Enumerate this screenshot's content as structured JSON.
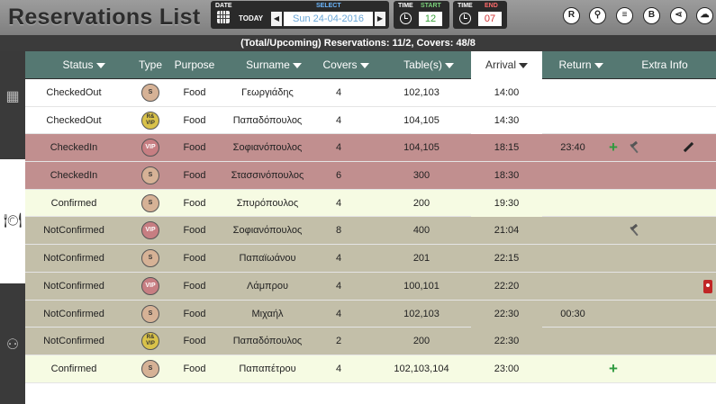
{
  "app": {
    "title": "Reservations List"
  },
  "date_picker": {
    "date_label": "DATE",
    "select_label": "SELECT",
    "today_label": "TODAY",
    "prev_label": "◀",
    "next_label": "▶",
    "date_value": "Sun 24-04-2016"
  },
  "time_start": {
    "time_label": "TIME",
    "start_label": "START",
    "value": "12"
  },
  "time_end": {
    "time_label": "TIME",
    "end_label": "END",
    "value": "07"
  },
  "toolbar": {
    "icons": [
      {
        "name": "reservation-icon",
        "glyph": "R"
      },
      {
        "name": "search-icon",
        "glyph": "⚲"
      },
      {
        "name": "list-icon",
        "glyph": "≡"
      },
      {
        "name": "b-icon",
        "glyph": "B"
      },
      {
        "name": "share-icon",
        "glyph": "⋖"
      },
      {
        "name": "cloud-download-icon",
        "glyph": "☁"
      }
    ]
  },
  "summary": {
    "text": "(Total/Upcoming) Reservations: 11/2, Covers: 48/8"
  },
  "sidebar": {
    "icons": [
      {
        "name": "grid-icon",
        "glyph": "▦"
      },
      {
        "name": "cutlery-icon",
        "glyph": "🍽"
      },
      {
        "name": "people-icon",
        "glyph": "⚇"
      }
    ]
  },
  "columns": {
    "status": "Status",
    "type": "Type",
    "purpose": "Purpose",
    "surname": "Surname",
    "covers": "Covers",
    "tables": "Table(s)",
    "arrival": "Arrival",
    "return": "Return",
    "extra": "Extra Info"
  },
  "type_labels": {
    "s": "S",
    "vip": "VIP",
    "rvip_top": "R&",
    "rvip_bottom": "VIP"
  },
  "rows": [
    {
      "status": "CheckedOut",
      "type": "s",
      "purpose": "Food",
      "surname": "Γεωργιάδης",
      "covers": "4",
      "tables": "102,103",
      "arrival": "14:00",
      "return": "",
      "style": "white"
    },
    {
      "status": "CheckedOut",
      "type": "rvip",
      "purpose": "Food",
      "surname": "Παπαδόπουλος",
      "covers": "4",
      "tables": "104,105",
      "arrival": "14:30",
      "return": "",
      "style": "white"
    },
    {
      "status": "CheckedIn",
      "type": "vip",
      "purpose": "Food",
      "surname": "Σοφιανόπουλος",
      "covers": "4",
      "tables": "104,105",
      "arrival": "18:15",
      "return": "23:40",
      "style": "checkedin"
    },
    {
      "status": "CheckedIn",
      "type": "s",
      "purpose": "Food",
      "surname": "Στασσινόπουλος",
      "covers": "6",
      "tables": "300",
      "arrival": "18:30",
      "return": "",
      "style": "checkedin"
    },
    {
      "status": "Confirmed",
      "type": "s",
      "purpose": "Food",
      "surname": "Σπυρόπουλος",
      "covers": "4",
      "tables": "200",
      "arrival": "19:30",
      "return": "",
      "style": "confirmed"
    },
    {
      "status": "NotConfirmed",
      "type": "vip",
      "purpose": "Food",
      "surname": "Σοφιανόπουλος",
      "covers": "8",
      "tables": "400",
      "arrival": "21:04",
      "return": "",
      "style": "notconfirmed"
    },
    {
      "status": "NotConfirmed",
      "type": "s",
      "purpose": "Food",
      "surname": "Παπαϊωάνου",
      "covers": "4",
      "tables": "201",
      "arrival": "22:15",
      "return": "",
      "style": "notconfirmed"
    },
    {
      "status": "NotConfirmed",
      "type": "vip",
      "purpose": "Food",
      "surname": "Λάμπρου",
      "covers": "4",
      "tables": "100,101",
      "arrival": "22:20",
      "return": "",
      "style": "notconfirmed"
    },
    {
      "status": "NotConfirmed",
      "type": "s",
      "purpose": "Food",
      "surname": "Μιχαήλ",
      "covers": "4",
      "tables": "102,103",
      "arrival": "22:30",
      "return": "00:30",
      "style": "notconfirmed"
    },
    {
      "status": "NotConfirmed",
      "type": "rvip",
      "purpose": "Food",
      "surname": "Παπαδόπουλος",
      "covers": "2",
      "tables": "200",
      "arrival": "22:30",
      "return": "",
      "style": "notconfirmed"
    },
    {
      "status": "Confirmed",
      "type": "s",
      "purpose": "Food",
      "surname": "Παπαπέτρου",
      "covers": "4",
      "tables": "102,103,104",
      "arrival": "23:00",
      "return": "",
      "style": "confirmed"
    }
  ]
}
